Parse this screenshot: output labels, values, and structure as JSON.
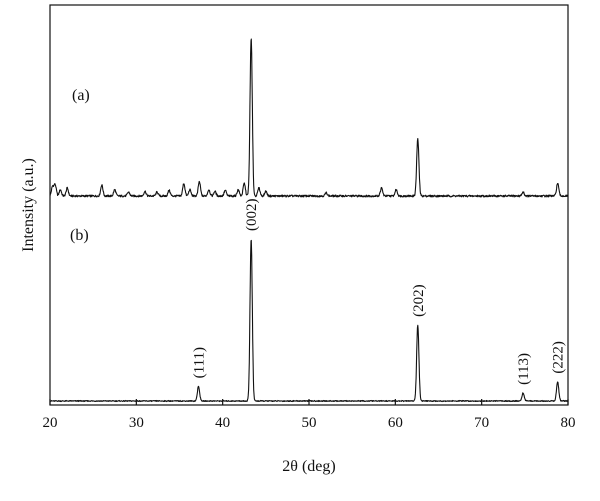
{
  "chart_data": {
    "type": "line",
    "title": "",
    "xlabel": "2θ (deg)",
    "ylabel": "Intensity (a.u.)",
    "xlim": [
      20,
      80
    ],
    "xticks": [
      20,
      30,
      40,
      50,
      60,
      70,
      80
    ],
    "y_ticks_shown": false,
    "grid": false,
    "series": [
      {
        "name": "(a)",
        "baseline": 0,
        "peaks": [
          {
            "x": 20.3,
            "h": 0.06
          },
          {
            "x": 20.6,
            "h": 0.07
          },
          {
            "x": 21.2,
            "h": 0.04
          },
          {
            "x": 22.0,
            "h": 0.05
          },
          {
            "x": 26.0,
            "h": 0.07
          },
          {
            "x": 27.5,
            "h": 0.04
          },
          {
            "x": 29.1,
            "h": 0.025
          },
          {
            "x": 31.0,
            "h": 0.03
          },
          {
            "x": 32.4,
            "h": 0.025
          },
          {
            "x": 33.8,
            "h": 0.035
          },
          {
            "x": 35.5,
            "h": 0.08
          },
          {
            "x": 36.2,
            "h": 0.04
          },
          {
            "x": 37.3,
            "h": 0.09
          },
          {
            "x": 38.4,
            "h": 0.04
          },
          {
            "x": 39.1,
            "h": 0.03
          },
          {
            "x": 40.3,
            "h": 0.035
          },
          {
            "x": 41.8,
            "h": 0.04
          },
          {
            "x": 42.5,
            "h": 0.08
          },
          {
            "x": 43.3,
            "h": 1.0
          },
          {
            "x": 44.2,
            "h": 0.05
          },
          {
            "x": 45.0,
            "h": 0.03
          },
          {
            "x": 52.0,
            "h": 0.02
          },
          {
            "x": 58.4,
            "h": 0.05
          },
          {
            "x": 60.1,
            "h": 0.04
          },
          {
            "x": 62.6,
            "h": 0.36
          },
          {
            "x": 74.8,
            "h": 0.025
          },
          {
            "x": 78.8,
            "h": 0.08
          }
        ]
      },
      {
        "name": "(b)",
        "baseline": 0,
        "peaks": [
          {
            "x": 37.2,
            "h": 0.09
          },
          {
            "x": 43.3,
            "h": 1.0
          },
          {
            "x": 62.6,
            "h": 0.47
          },
          {
            "x": 74.8,
            "h": 0.05
          },
          {
            "x": 78.8,
            "h": 0.12
          }
        ]
      }
    ],
    "annotations": [
      {
        "text": "(a)",
        "series": "(a)"
      },
      {
        "text": "(b)",
        "series": "(b)"
      }
    ],
    "peak_labels": [
      {
        "text": "(111)",
        "x": 37.2
      },
      {
        "text": "(002)",
        "x": 43.3
      },
      {
        "text": "(202)",
        "x": 62.6
      },
      {
        "text": "(113)",
        "x": 74.8
      },
      {
        "text": "(222)",
        "x": 78.8
      }
    ]
  }
}
